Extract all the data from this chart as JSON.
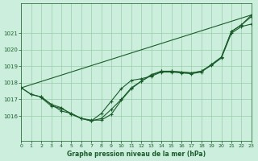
{
  "title": "Graphe pression niveau de la mer (hPa)",
  "bg_color": "#cceedd",
  "line_color": "#1a5c2a",
  "grid_color": "#99ccaa",
  "xlim": [
    0,
    23
  ],
  "ylim": [
    1014.5,
    1022.8
  ],
  "xticks": [
    0,
    1,
    2,
    3,
    4,
    5,
    6,
    7,
    8,
    9,
    10,
    11,
    12,
    13,
    14,
    15,
    16,
    17,
    18,
    19,
    20,
    21,
    22,
    23
  ],
  "yticks": [
    1016,
    1017,
    1018,
    1019,
    1020,
    1021
  ],
  "series_linear": {
    "x": [
      0,
      23
    ],
    "y": [
      1017.7,
      1022.1
    ]
  },
  "series_dip1": {
    "x": [
      0,
      1,
      2,
      3,
      4,
      5,
      6,
      7,
      8,
      9,
      10,
      11,
      12,
      13,
      14,
      15,
      16,
      17,
      18,
      19,
      20,
      21,
      22,
      23
    ],
    "y": [
      1017.7,
      1017.3,
      1017.15,
      1016.7,
      1016.3,
      1016.15,
      1015.85,
      1015.75,
      1015.75,
      1016.1,
      1016.95,
      1017.65,
      1018.1,
      1018.5,
      1018.7,
      1018.7,
      1018.65,
      1018.6,
      1018.7,
      1019.05,
      1019.5,
      1021.0,
      1021.4,
      1021.55
    ]
  },
  "series_dip2": {
    "x": [
      0,
      1,
      2,
      3,
      4,
      5,
      6,
      7,
      8,
      9,
      10,
      11,
      12,
      13,
      14,
      15,
      16,
      17,
      18,
      19,
      20,
      21,
      22,
      23
    ],
    "y": [
      1017.7,
      1017.3,
      1017.15,
      1016.7,
      1016.5,
      1016.1,
      1015.85,
      1015.7,
      1015.85,
      1016.4,
      1017.0,
      1017.7,
      1018.1,
      1018.45,
      1018.7,
      1018.7,
      1018.65,
      1018.6,
      1018.7,
      1019.1,
      1019.55,
      1021.1,
      1021.5,
      1022.0
    ]
  },
  "series_dip3": {
    "x": [
      2,
      3,
      4,
      5,
      6,
      7,
      8,
      9,
      10,
      11,
      12,
      13,
      14,
      15,
      16,
      17,
      18,
      19,
      20,
      21,
      22,
      23
    ],
    "y": [
      1017.1,
      1016.6,
      1016.45,
      1016.15,
      1015.85,
      1015.7,
      1016.15,
      1016.9,
      1017.65,
      1018.15,
      1018.25,
      1018.4,
      1018.65,
      1018.65,
      1018.6,
      1018.55,
      1018.65,
      1019.1,
      1019.55,
      1021.1,
      1021.5,
      1022.1
    ]
  }
}
